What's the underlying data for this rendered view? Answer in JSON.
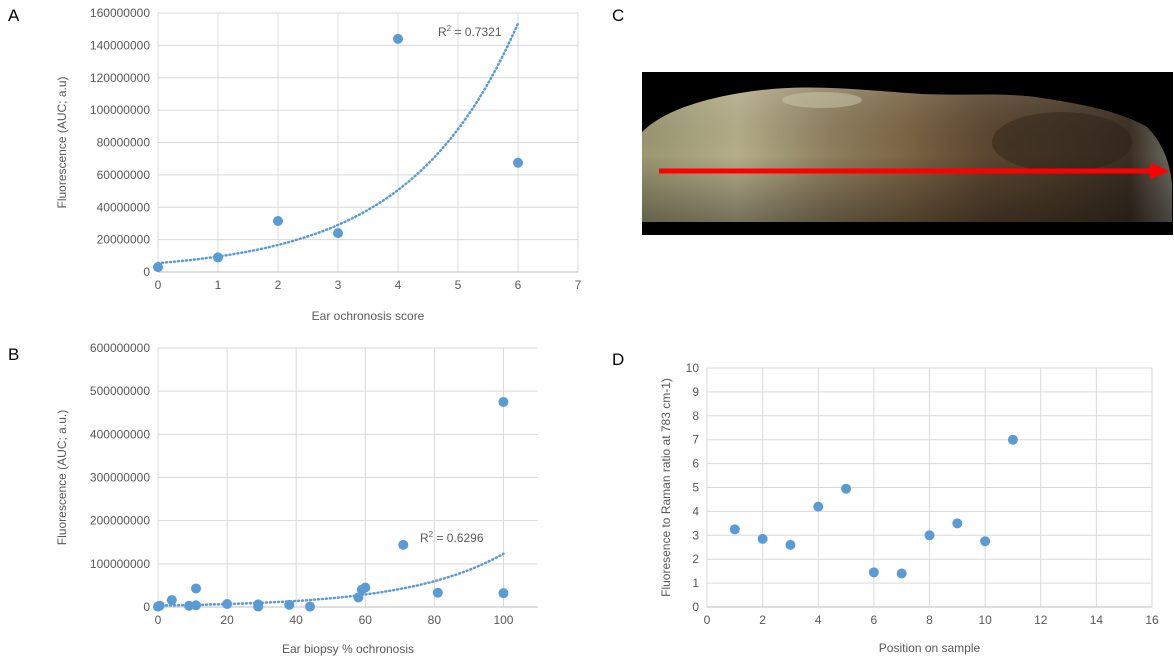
{
  "panels": {
    "a": "A",
    "b": "B",
    "c": "C",
    "d": "D"
  },
  "chart_data": [
    {
      "id": "A",
      "type": "scatter",
      "xlabel": "Ear ochronosis score",
      "ylabel": "Fluorescence (AUC; a.u)",
      "xlim": [
        0,
        7
      ],
      "ylim": [
        0,
        160000000
      ],
      "xticks": [
        0,
        1,
        2,
        3,
        4,
        5,
        6,
        7
      ],
      "yticks": [
        0,
        20000000,
        40000000,
        60000000,
        80000000,
        100000000,
        120000000,
        140000000,
        160000000
      ],
      "grid": true,
      "color": "#5b9bd5",
      "points": [
        {
          "x": 0,
          "y": 3000000
        },
        {
          "x": 1,
          "y": 9000000
        },
        {
          "x": 2,
          "y": 31500000
        },
        {
          "x": 3,
          "y": 24000000
        },
        {
          "x": 4,
          "y": 144000000
        },
        {
          "x": 6,
          "y": 67500000
        }
      ],
      "trendline": {
        "kind": "exponential",
        "a": 5500000,
        "b": 0.555,
        "x_range": [
          0,
          6
        ],
        "style": "dotted"
      },
      "annotation": {
        "r2_prefix": "R",
        "r2_sup": "2",
        "r2_suffix": " = 0.7321"
      }
    },
    {
      "id": "B",
      "type": "scatter",
      "xlabel": "Ear biopsy % ochronosis",
      "ylabel": "Fluorescence (AUC; a.u.)",
      "xlim": [
        0,
        110
      ],
      "ylim": [
        0,
        600000000
      ],
      "xticks": [
        0,
        20,
        40,
        60,
        80,
        100
      ],
      "yticks": [
        0,
        100000000,
        200000000,
        300000000,
        400000000,
        500000000,
        600000000
      ],
      "grid": true,
      "color": "#5b9bd5",
      "points": [
        {
          "x": 0,
          "y": 1000000
        },
        {
          "x": 0.5,
          "y": 3000000
        },
        {
          "x": 4,
          "y": 16000000
        },
        {
          "x": 9,
          "y": 3000000
        },
        {
          "x": 11,
          "y": 43000000
        },
        {
          "x": 11,
          "y": 4000000
        },
        {
          "x": 20,
          "y": 7000000
        },
        {
          "x": 29,
          "y": 1000000
        },
        {
          "x": 29,
          "y": 6000000
        },
        {
          "x": 38,
          "y": 5000000
        },
        {
          "x": 44,
          "y": 1000000
        },
        {
          "x": 58,
          "y": 22000000
        },
        {
          "x": 59,
          "y": 40000000
        },
        {
          "x": 60,
          "y": 45000000
        },
        {
          "x": 71,
          "y": 144000000
        },
        {
          "x": 81,
          "y": 33000000
        },
        {
          "x": 100,
          "y": 475000000
        },
        {
          "x": 100,
          "y": 32000000
        }
      ],
      "trendline": {
        "kind": "exponential",
        "a": 3300000,
        "b": 0.0362,
        "x_range": [
          0,
          100
        ],
        "style": "dotted"
      },
      "annotation": {
        "r2_prefix": "R",
        "r2_sup": "2",
        "r2_suffix": " = 0.6296"
      }
    },
    {
      "id": "D",
      "type": "scatter",
      "xlabel": "Position on sample",
      "ylabel": "Fluoresence to Raman ratio at 783 cm-1)",
      "xlim": [
        0,
        16
      ],
      "ylim": [
        0,
        10
      ],
      "xticks": [
        0,
        2,
        4,
        6,
        8,
        10,
        12,
        14,
        16
      ],
      "yticks": [
        0,
        1,
        2,
        3,
        4,
        5,
        6,
        7,
        8,
        9,
        10
      ],
      "grid": true,
      "color": "#5b9bd5",
      "points": [
        {
          "x": 1,
          "y": 3.25
        },
        {
          "x": 2,
          "y": 2.85
        },
        {
          "x": 3,
          "y": 2.6
        },
        {
          "x": 4,
          "y": 4.2
        },
        {
          "x": 5,
          "y": 4.95
        },
        {
          "x": 6,
          "y": 1.45
        },
        {
          "x": 7,
          "y": 1.4
        },
        {
          "x": 8,
          "y": 3.0
        },
        {
          "x": 9,
          "y": 3.5
        },
        {
          "x": 10,
          "y": 2.75
        },
        {
          "x": 11,
          "y": 7.0
        }
      ]
    }
  ],
  "photo": {
    "arrow_color": "#ff0000",
    "background": "#000000"
  }
}
